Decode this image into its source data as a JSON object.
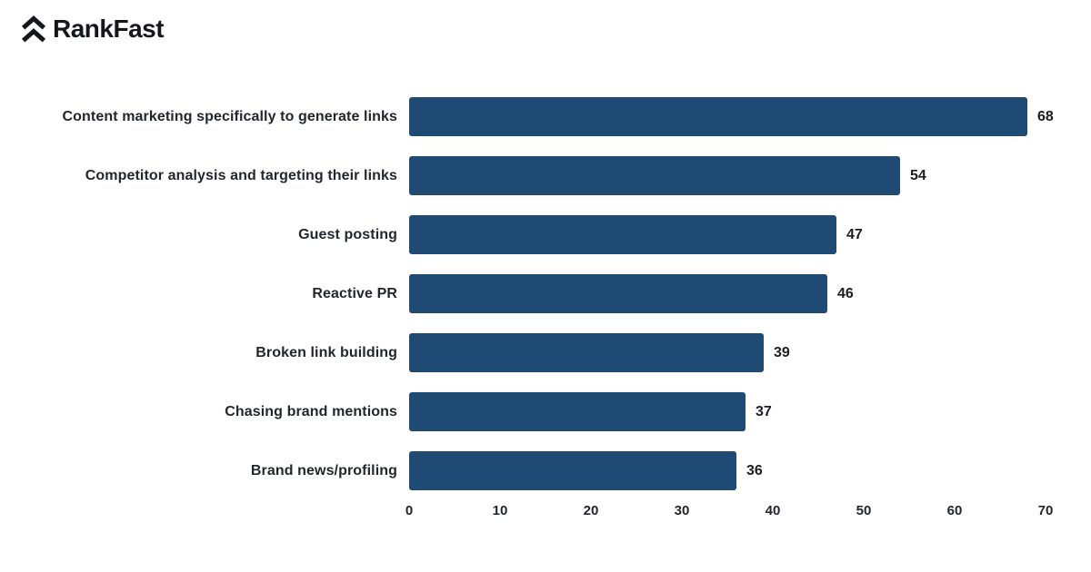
{
  "brand": {
    "name": "RankFast",
    "icon": "double-chevron-up-icon",
    "color": "#15171c"
  },
  "chart_data": {
    "type": "bar",
    "orientation": "horizontal",
    "title": "",
    "xlabel": "",
    "ylabel": "",
    "categories": [
      "Content marketing specifically to generate links",
      "Competitor analysis and targeting their links",
      "Guest posting",
      "Reactive PR",
      "Broken link building",
      "Chasing brand mentions",
      "Brand news/profiling"
    ],
    "values": [
      68,
      54,
      47,
      46,
      39,
      37,
      36
    ],
    "data_labels_shown": true,
    "xlim": [
      0,
      70
    ],
    "x_ticks": [
      0,
      10,
      20,
      30,
      40,
      50,
      60,
      70
    ],
    "grid": false,
    "legend": false,
    "bar_color": "#1e4a73",
    "label_color": "#23262b",
    "background_color": "#ffffff"
  }
}
